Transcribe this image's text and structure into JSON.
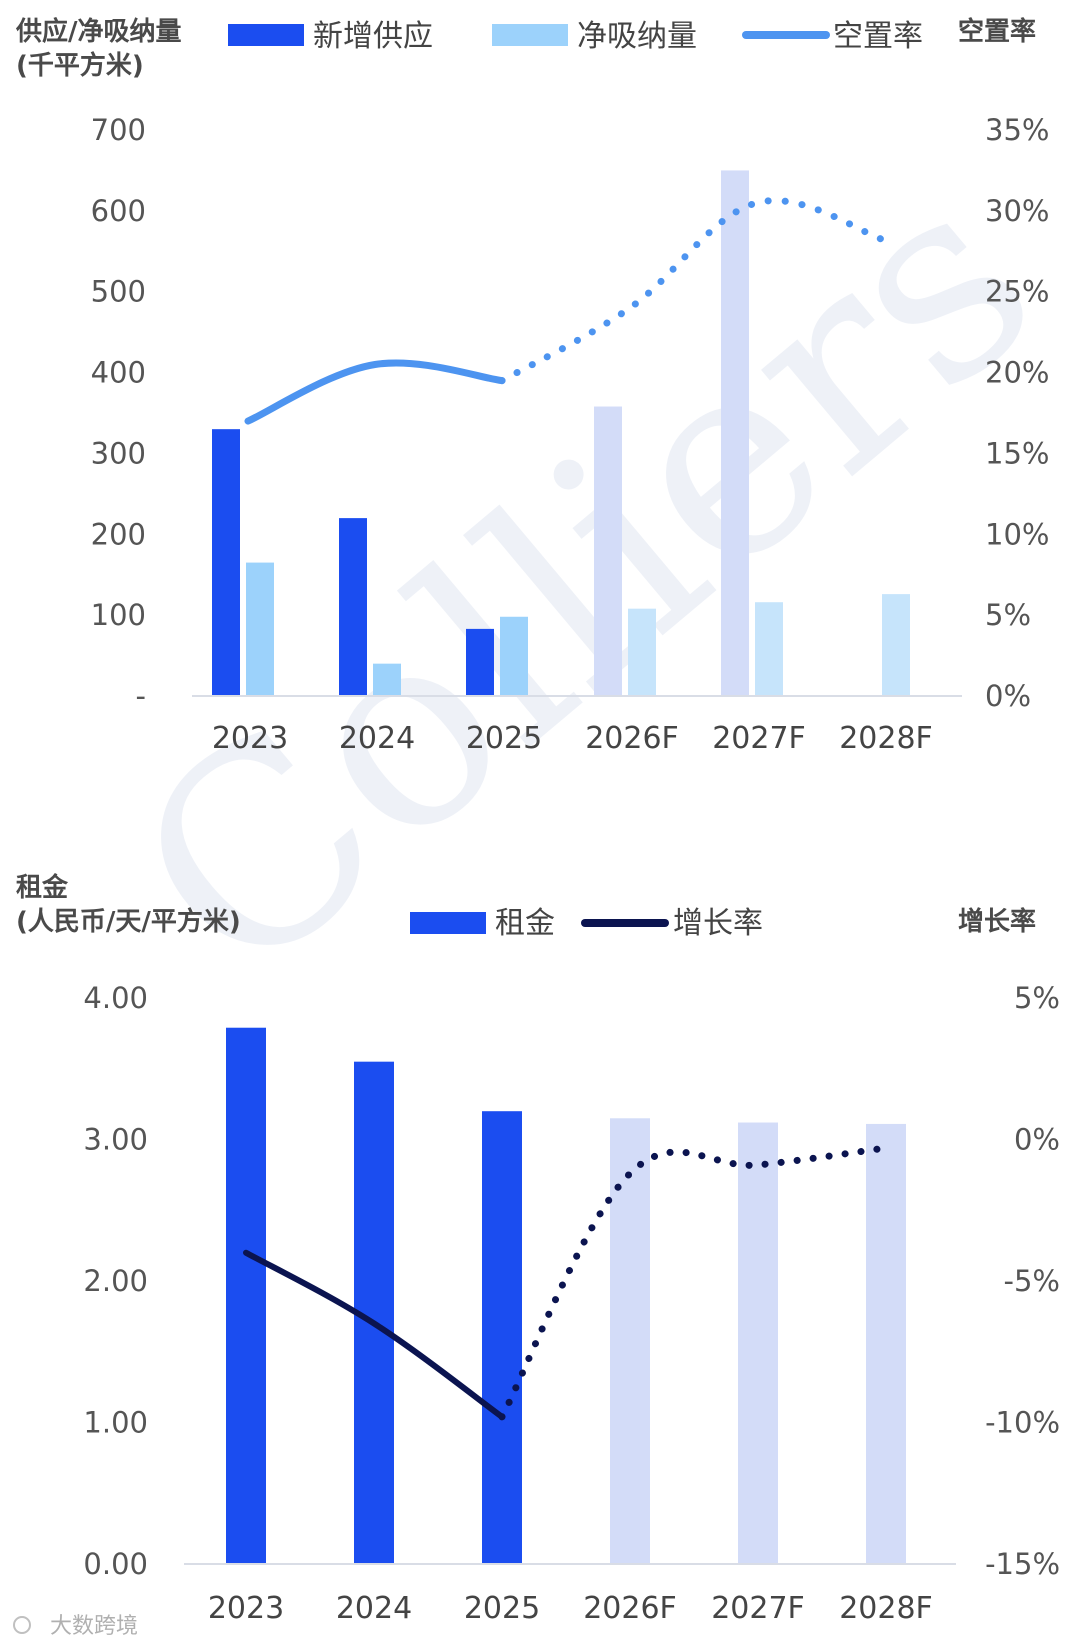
{
  "watermark": "Colliers",
  "source_mark": "大数跨境",
  "chart_data": [
    {
      "type": "bar",
      "left_axis_title": [
        "供应/净吸纳量",
        "(千平方米)"
      ],
      "right_axis_title": "空置率",
      "legend": {
        "supply": "新增供应",
        "absorption": "净吸纳量",
        "vacancy": "空置率"
      },
      "categories": [
        "2023",
        "2024",
        "2025",
        "2026F",
        "2027F",
        "2028F"
      ],
      "left_ticks": [
        "700",
        "600",
        "500",
        "400",
        "300",
        "200",
        "100",
        "-"
      ],
      "right_ticks": [
        "35%",
        "30%",
        "25%",
        "20%",
        "15%",
        "10%",
        "5%",
        "0%"
      ],
      "ylim_left": [
        0,
        700
      ],
      "ylim_right": [
        0,
        35
      ],
      "series": [
        {
          "name": "新增供应",
          "values": [
            330,
            220,
            83,
            358,
            650,
            0
          ],
          "forecast_from": 3
        },
        {
          "name": "净吸纳量",
          "values": [
            165,
            40,
            98,
            108,
            116,
            126
          ],
          "forecast_from": 3
        },
        {
          "name": "空置率",
          "type": "line",
          "values": [
            17.0,
            20.5,
            19.5,
            24.0,
            30.5,
            28.2
          ],
          "forecast_from": 2
        }
      ],
      "colors": {
        "supply": "#1b4df0",
        "supply_forecast": "#d3dcf8",
        "absorption": "#9cd2fb",
        "absorption_forecast": "#c6e4fb",
        "vacancy": "#4d94f0"
      }
    },
    {
      "type": "bar",
      "left_axis_title": [
        "租金",
        "(人民币/天/平方米)"
      ],
      "right_axis_title": "增长率",
      "legend": {
        "rent": "租金",
        "growth": "增长率"
      },
      "categories": [
        "2023",
        "2024",
        "2025",
        "2026F",
        "2027F",
        "2028F"
      ],
      "left_ticks": [
        "4.00",
        "3.00",
        "2.00",
        "1.00",
        "0.00"
      ],
      "right_ticks": [
        "5%",
        "0%",
        "-5%",
        "-10%",
        "-15%"
      ],
      "ylim_left": [
        0,
        4
      ],
      "ylim_right": [
        -15,
        5
      ],
      "series": [
        {
          "name": "租金",
          "values": [
            3.79,
            3.55,
            3.2,
            3.15,
            3.12,
            3.11
          ],
          "forecast_from": 3
        },
        {
          "name": "增长率",
          "type": "line",
          "values": [
            -4.0,
            -6.5,
            -9.8,
            -1.2,
            -0.9,
            -0.3
          ],
          "forecast_from": 2
        }
      ],
      "colors": {
        "rent": "#1b4df0",
        "rent_forecast": "#d3dcf8",
        "growth": "#0b1450"
      }
    }
  ]
}
